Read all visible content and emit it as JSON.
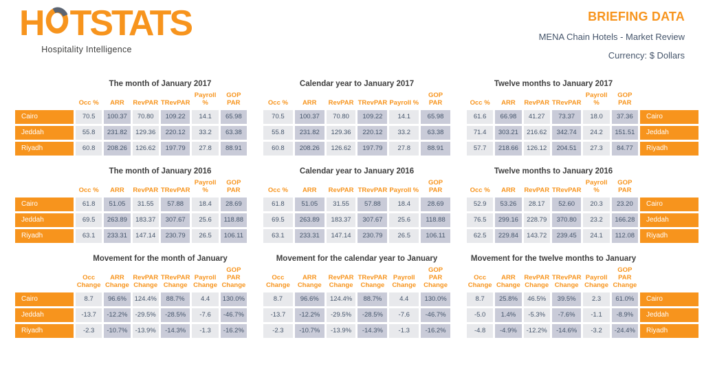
{
  "header": {
    "logo_part_before_o": "H",
    "logo_part_after_o": "TSTATS",
    "tagline": "Hospitality Intelligence",
    "title": "BRIEFING DATA",
    "subtitle": "MENA Chain Hotels - Market Review",
    "currency": "Currency: $ Dollars"
  },
  "colors": {
    "orange": "#F7941D",
    "blue_gray_text": "#44546A",
    "cell_light": "#E8E9EC",
    "cell_dark": "#C9CBD8"
  },
  "columns_standard": [
    "Occ %",
    "ARR",
    "RevPAR",
    "TRevPAR",
    "Payroll %",
    "GOP PAR"
  ],
  "columns_movement": [
    "Occ\nChange",
    "ARR\nChange",
    "RevPAR\nChange",
    "TRevPAR\nChange",
    "Payroll\nChange",
    "GOP PAR\nChange"
  ],
  "tables": [
    {
      "title": "The month of January 2017",
      "city_side": "left",
      "column_set": "standard",
      "rows": [
        {
          "city": "Cairo",
          "values": [
            "70.5",
            "100.37",
            "70.80",
            "109.22",
            "14.1",
            "65.98"
          ]
        },
        {
          "city": "Jeddah",
          "values": [
            "55.8",
            "231.82",
            "129.36",
            "220.12",
            "33.2",
            "63.38"
          ]
        },
        {
          "city": "Riyadh",
          "values": [
            "60.8",
            "208.26",
            "126.62",
            "197.79",
            "27.8",
            "88.91"
          ]
        }
      ]
    },
    {
      "title": "Calendar year to January 2017",
      "city_side": "none",
      "column_set": "standard",
      "rows": [
        {
          "city": "Cairo",
          "values": [
            "70.5",
            "100.37",
            "70.80",
            "109.22",
            "14.1",
            "65.98"
          ]
        },
        {
          "city": "Jeddah",
          "values": [
            "55.8",
            "231.82",
            "129.36",
            "220.12",
            "33.2",
            "63.38"
          ]
        },
        {
          "city": "Riyadh",
          "values": [
            "60.8",
            "208.26",
            "126.62",
            "197.79",
            "27.8",
            "88.91"
          ]
        }
      ]
    },
    {
      "title": "Twelve months to January 2017",
      "city_side": "right",
      "column_set": "standard",
      "rows": [
        {
          "city": "Cairo",
          "values": [
            "61.6",
            "66.98",
            "41.27",
            "73.37",
            "18.0",
            "37.36"
          ]
        },
        {
          "city": "Jeddah",
          "values": [
            "71.4",
            "303.21",
            "216.62",
            "342.74",
            "24.2",
            "151.51"
          ]
        },
        {
          "city": "Riyadh",
          "values": [
            "57.7",
            "218.66",
            "126.12",
            "204.51",
            "27.3",
            "84.77"
          ]
        }
      ]
    },
    {
      "title": "The month of January 2016",
      "city_side": "left",
      "column_set": "standard",
      "rows": [
        {
          "city": "Cairo",
          "values": [
            "61.8",
            "51.05",
            "31.55",
            "57.88",
            "18.4",
            "28.69"
          ]
        },
        {
          "city": "Jeddah",
          "values": [
            "69.5",
            "263.89",
            "183.37",
            "307.67",
            "25.6",
            "118.88"
          ]
        },
        {
          "city": "Riyadh",
          "values": [
            "63.1",
            "233.31",
            "147.14",
            "230.79",
            "26.5",
            "106.11"
          ]
        }
      ]
    },
    {
      "title": "Calendar year to January 2016",
      "city_side": "none",
      "column_set": "standard",
      "rows": [
        {
          "city": "Cairo",
          "values": [
            "61.8",
            "51.05",
            "31.55",
            "57.88",
            "18.4",
            "28.69"
          ]
        },
        {
          "city": "Jeddah",
          "values": [
            "69.5",
            "263.89",
            "183.37",
            "307.67",
            "25.6",
            "118.88"
          ]
        },
        {
          "city": "Riyadh",
          "values": [
            "63.1",
            "233.31",
            "147.14",
            "230.79",
            "26.5",
            "106.11"
          ]
        }
      ]
    },
    {
      "title": "Twelve months to January 2016",
      "city_side": "right",
      "column_set": "standard",
      "rows": [
        {
          "city": "Cairo",
          "values": [
            "52.9",
            "53.26",
            "28.17",
            "52.60",
            "20.3",
            "23.20"
          ]
        },
        {
          "city": "Jeddah",
          "values": [
            "76.5",
            "299.16",
            "228.79",
            "370.80",
            "23.2",
            "166.28"
          ]
        },
        {
          "city": "Riyadh",
          "values": [
            "62.5",
            "229.84",
            "143.72",
            "239.45",
            "24.1",
            "112.08"
          ]
        }
      ]
    },
    {
      "title": "Movement for the month of January",
      "city_side": "left",
      "column_set": "movement",
      "rows": [
        {
          "city": "Cairo",
          "values": [
            "8.7",
            "96.6%",
            "124.4%",
            "88.7%",
            "4.4",
            "130.0%"
          ]
        },
        {
          "city": "Jeddah",
          "values": [
            "-13.7",
            "-12.2%",
            "-29.5%",
            "-28.5%",
            "-7.6",
            "-46.7%"
          ]
        },
        {
          "city": "Riyadh",
          "values": [
            "-2.3",
            "-10.7%",
            "-13.9%",
            "-14.3%",
            "-1.3",
            "-16.2%"
          ]
        }
      ]
    },
    {
      "title": "Movement for the calendar year to January",
      "city_side": "none",
      "column_set": "movement",
      "rows": [
        {
          "city": "Cairo",
          "values": [
            "8.7",
            "96.6%",
            "124.4%",
            "88.7%",
            "4.4",
            "130.0%"
          ]
        },
        {
          "city": "Jeddah",
          "values": [
            "-13.7",
            "-12.2%",
            "-29.5%",
            "-28.5%",
            "-7.6",
            "-46.7%"
          ]
        },
        {
          "city": "Riyadh",
          "values": [
            "-2.3",
            "-10.7%",
            "-13.9%",
            "-14.3%",
            "-1.3",
            "-16.2%"
          ]
        }
      ]
    },
    {
      "title": "Movement for the twelve months to January",
      "city_side": "right",
      "column_set": "movement",
      "rows": [
        {
          "city": "Cairo",
          "values": [
            "8.7",
            "25.8%",
            "46.5%",
            "39.5%",
            "2.3",
            "61.0%"
          ]
        },
        {
          "city": "Jeddah",
          "values": [
            "-5.0",
            "1.4%",
            "-5.3%",
            "-7.6%",
            "-1.1",
            "-8.9%"
          ]
        },
        {
          "city": "Riyadh",
          "values": [
            "-4.8",
            "-4.9%",
            "-12.2%",
            "-14.6%",
            "-3.2",
            "-24.4%"
          ]
        }
      ]
    }
  ]
}
